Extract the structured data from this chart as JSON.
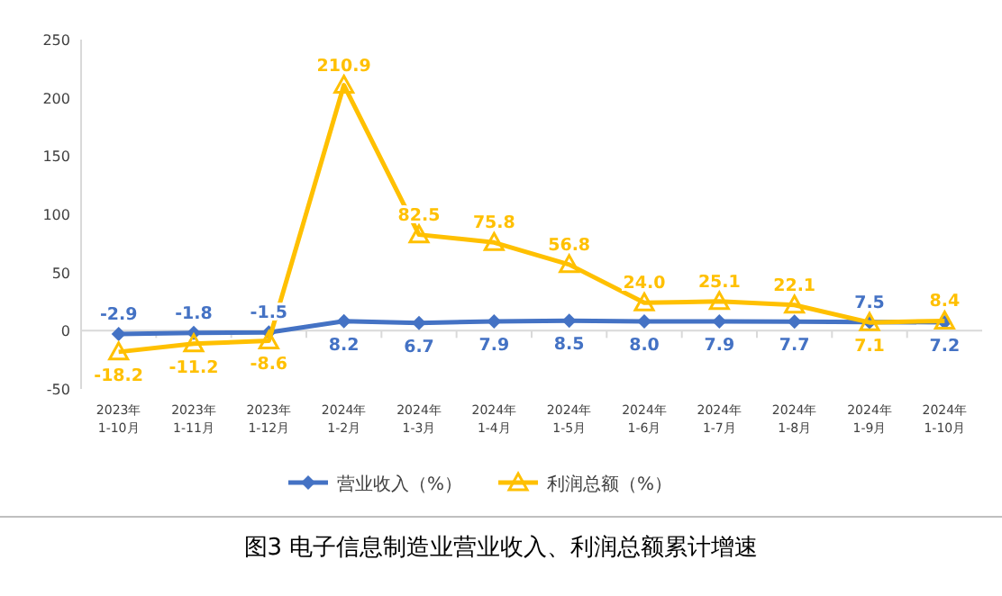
{
  "chart_data": {
    "type": "line",
    "title": "图3 电子信息制造业营业收入、利润总额累计增速",
    "categories": [
      "2023年\n1-10月",
      "2023年\n1-11月",
      "2023年\n1-12月",
      "2024年\n1-2月",
      "2024年\n1-3月",
      "2024年\n1-4月",
      "2024年\n1-5月",
      "2024年\n1-6月",
      "2024年\n1-7月",
      "2024年\n1-8月",
      "2024年\n1-9月",
      "2024年\n1-10月"
    ],
    "series": [
      {
        "name": "营业收入（%）",
        "color": "#4472c4",
        "marker": "diamond",
        "values": [
          -2.9,
          -1.8,
          -1.5,
          8.2,
          6.7,
          7.9,
          8.5,
          8.0,
          7.9,
          7.7,
          7.5,
          7.2
        ],
        "value_labels": [
          "-2.9",
          "-1.8",
          "-1.5",
          "8.2",
          "6.7",
          "7.9",
          "8.5",
          "8.0",
          "7.9",
          "7.7",
          "7.5",
          "7.2"
        ]
      },
      {
        "name": "利润总额（%）",
        "color": "#ffc000",
        "marker": "triangle",
        "values": [
          -18.2,
          -11.2,
          -8.6,
          210.9,
          82.5,
          75.8,
          56.8,
          24.0,
          25.1,
          22.1,
          7.1,
          8.4
        ],
        "value_labels": [
          "-18.2",
          "-11.2",
          "-8.6",
          "210.9",
          "82.5",
          "75.8",
          "56.8",
          "24.0",
          "25.1",
          "22.1",
          "7.1",
          "8.4"
        ]
      }
    ],
    "ylim": [
      -50,
      250
    ],
    "yticks": [
      -50,
      0,
      50,
      100,
      150,
      200,
      250
    ],
    "legend": "bottom"
  }
}
